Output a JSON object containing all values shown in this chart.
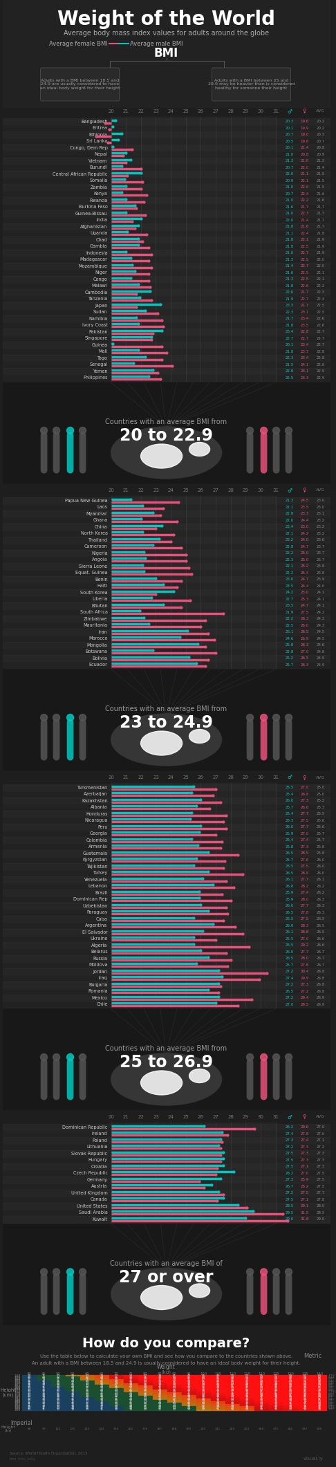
{
  "title": "Weight of the World",
  "subtitle": "Average body mass index values for adults around the globe",
  "legend_female": "Average female BMI",
  "legend_male": "Average male BMI",
  "female_color": "#e8517a",
  "male_color": "#00c8c0",
  "bg_color": "#1e1e1e",
  "grid_color": "#303030",
  "text_color": "#ffffff",
  "dim_color": "#888888",
  "groups": [
    {
      "range_label": "20 to 22.9",
      "range_text": "Countries with an average BMI from",
      "countries": [
        {
          "name": "Bangladesh",
          "male": 20.3,
          "female": 19.6,
          "avg": 20.2
        },
        {
          "name": "Eritrea",
          "male": 20.1,
          "female": 19.9,
          "avg": 20.2
        },
        {
          "name": "Ethiopia",
          "male": 20.7,
          "female": 19.0,
          "avg": 20.3
        },
        {
          "name": "Sri Lanka",
          "male": 20.5,
          "female": 19.8,
          "avg": 20.7
        },
        {
          "name": "Congo, Dem Rep",
          "male": 20.1,
          "female": 21.4,
          "avg": 20.8
        },
        {
          "name": "Nepal",
          "male": 21.0,
          "female": 20.8,
          "avg": 20.9
        },
        {
          "name": "Vietnam",
          "male": 21.3,
          "female": 21.0,
          "avg": 21.2
        },
        {
          "name": "Burundi",
          "male": 20.7,
          "female": 22.0,
          "avg": 21.4
        },
        {
          "name": "Central African Republic",
          "male": 22.0,
          "female": 21.1,
          "avg": 21.5
        },
        {
          "name": "Somalia",
          "male": 20.9,
          "female": 22.1,
          "avg": 21.5
        },
        {
          "name": "Zambia",
          "male": 21.0,
          "female": 22.0,
          "avg": 21.5
        },
        {
          "name": "Kenya",
          "male": 20.7,
          "female": 22.4,
          "avg": 21.6
        },
        {
          "name": "Rwanda",
          "male": 21.0,
          "female": 22.2,
          "avg": 21.6
        },
        {
          "name": "Burkina Faso",
          "male": 21.6,
          "female": 21.7,
          "avg": 21.7
        },
        {
          "name": "Guinea-Bissau",
          "male": 21.0,
          "female": 22.3,
          "avg": 21.7
        },
        {
          "name": "India",
          "male": 22.0,
          "female": 21.4,
          "avg": 21.7
        },
        {
          "name": "Afghanistan",
          "male": 21.8,
          "female": 21.6,
          "avg": 21.7
        },
        {
          "name": "Uganda",
          "male": 21.1,
          "female": 22.4,
          "avg": 21.8
        },
        {
          "name": "Chad",
          "male": 21.8,
          "female": 22.1,
          "avg": 21.9
        },
        {
          "name": "Gambia",
          "male": 21.8,
          "female": 22.5,
          "avg": 21.9
        },
        {
          "name": "Indonesia",
          "male": 21.0,
          "female": 22.7,
          "avg": 21.9
        },
        {
          "name": "Madagascar",
          "male": 21.3,
          "female": 22.5,
          "avg": 22.0
        },
        {
          "name": "Mozambique",
          "male": 21.4,
          "female": 22.7,
          "avg": 22.0
        },
        {
          "name": "Niger",
          "male": 21.6,
          "female": 22.5,
          "avg": 22.1
        },
        {
          "name": "Congo",
          "male": 21.3,
          "female": 22.5,
          "avg": 22.1
        },
        {
          "name": "Malawi",
          "male": 21.8,
          "female": 22.6,
          "avg": 22.2
        },
        {
          "name": "Cambodia",
          "male": 22.6,
          "female": 21.7,
          "avg": 22.3
        },
        {
          "name": "Tanzania",
          "male": 21.9,
          "female": 22.7,
          "avg": 22.4
        },
        {
          "name": "Japan",
          "male": 23.3,
          "female": 21.7,
          "avg": 22.5
        },
        {
          "name": "Sudan",
          "male": 22.3,
          "female": 23.1,
          "avg": 22.5
        },
        {
          "name": "Namibia",
          "male": 21.7,
          "female": 23.4,
          "avg": 22.6
        },
        {
          "name": "Ivory Coast",
          "male": 21.8,
          "female": 23.5,
          "avg": 22.6
        },
        {
          "name": "Pakistan",
          "male": 23.4,
          "female": 22.8,
          "avg": 22.7
        },
        {
          "name": "Singapore",
          "male": 22.7,
          "female": 22.7,
          "avg": 22.7
        },
        {
          "name": "Guinea",
          "male": 20.1,
          "female": 23.4,
          "avg": 22.7
        },
        {
          "name": "Mali",
          "male": 21.8,
          "female": 23.7,
          "avg": 22.8
        },
        {
          "name": "Togo",
          "male": 22.3,
          "female": 23.4,
          "avg": 22.8
        },
        {
          "name": "Senegal",
          "male": 21.5,
          "female": 24.1,
          "avg": 22.8
        },
        {
          "name": "Yemen",
          "male": 22.8,
          "female": 23.1,
          "avg": 22.9
        },
        {
          "name": "Philippines",
          "male": 22.5,
          "female": 23.3,
          "avg": 22.9
        }
      ]
    },
    {
      "range_label": "23 to 24.9",
      "range_text": "Countries with an average BMI from",
      "countries": [
        {
          "name": "Papua New Guinea",
          "male": 21.3,
          "female": 24.5,
          "avg": 23.0
        },
        {
          "name": "Laos",
          "male": 22.1,
          "female": 23.5,
          "avg": 23.0
        },
        {
          "name": "Myanmar",
          "male": 22.8,
          "female": 23.3,
          "avg": 23.1
        },
        {
          "name": "Ghana",
          "male": 22.0,
          "female": 24.4,
          "avg": 23.2
        },
        {
          "name": "China",
          "male": 23.4,
          "female": 23.0,
          "avg": 23.2
        },
        {
          "name": "North Korea",
          "male": 22.1,
          "female": 24.2,
          "avg": 23.2
        },
        {
          "name": "Thailand",
          "male": 23.2,
          "female": 24.0,
          "avg": 23.6
        },
        {
          "name": "Cameroon",
          "male": 22.8,
          "female": 24.7,
          "avg": 23.7
        },
        {
          "name": "Nigeria",
          "male": 22.2,
          "female": 25.0,
          "avg": 23.7
        },
        {
          "name": "Angola",
          "male": 22.3,
          "female": 25.0,
          "avg": 23.7
        },
        {
          "name": "Sierra Leone",
          "male": 22.1,
          "female": 25.2,
          "avg": 23.8
        },
        {
          "name": "Equat. Guinea",
          "male": 22.2,
          "female": 25.4,
          "avg": 23.8
        },
        {
          "name": "Benin",
          "male": 23.0,
          "female": 24.7,
          "avg": 23.9
        },
        {
          "name": "Haiti",
          "male": 23.5,
          "female": 24.4,
          "avg": 24.0
        },
        {
          "name": "South Korea",
          "male": 24.2,
          "female": 23.0,
          "avg": 24.1
        },
        {
          "name": "Liberia",
          "male": 22.7,
          "female": 25.3,
          "avg": 24.1
        },
        {
          "name": "Bhutan",
          "male": 23.5,
          "female": 24.7,
          "avg": 24.1
        },
        {
          "name": "South Africa",
          "male": 21.9,
          "female": 27.5,
          "avg": 24.2
        },
        {
          "name": "Zimbabwe",
          "male": 22.2,
          "female": 26.3,
          "avg": 24.3
        },
        {
          "name": "Mauritania",
          "male": 22.5,
          "female": 26.0,
          "avg": 24.3
        },
        {
          "name": "Iran",
          "male": 25.1,
          "female": 26.5,
          "avg": 24.5
        },
        {
          "name": "Morocco",
          "male": 24.6,
          "female": 26.9,
          "avg": 24.5
        },
        {
          "name": "Mongolia",
          "male": 25.8,
          "female": 26.3,
          "avg": 24.6
        },
        {
          "name": "Botswana",
          "male": 22.8,
          "female": 27.0,
          "avg": 24.8
        },
        {
          "name": "Bolivia",
          "male": 25.2,
          "female": 26.5,
          "avg": 24.9
        },
        {
          "name": "Ecuador",
          "male": 25.7,
          "female": 26.3,
          "avg": 24.9
        }
      ]
    },
    {
      "range_label": "25 to 26.9",
      "range_text": "Countries with an average BMI from",
      "countries": [
        {
          "name": "Turkmenistan",
          "male": 25.5,
          "female": 27.0,
          "avg": 25.0
        },
        {
          "name": "Azerbaijan",
          "male": 25.4,
          "female": 26.8,
          "avg": 25.0
        },
        {
          "name": "Kazakhstan",
          "male": 26.0,
          "female": 27.3,
          "avg": 25.2
        },
        {
          "name": "Albania",
          "male": 25.7,
          "female": 26.6,
          "avg": 25.3
        },
        {
          "name": "Honduras",
          "male": 25.4,
          "female": 27.7,
          "avg": 25.5
        },
        {
          "name": "Nicaragua",
          "male": 25.3,
          "female": 27.5,
          "avg": 25.6
        },
        {
          "name": "Peru",
          "male": 26.0,
          "female": 27.7,
          "avg": 25.6
        },
        {
          "name": "Georgia",
          "male": 25.9,
          "female": 27.0,
          "avg": 25.7
        },
        {
          "name": "Colombia",
          "male": 25.4,
          "female": 27.4,
          "avg": 25.7
        },
        {
          "name": "Armenia",
          "male": 25.8,
          "female": 27.3,
          "avg": 25.8
        },
        {
          "name": "Guatemala",
          "male": 26.5,
          "female": 28.5,
          "avg": 25.8
        },
        {
          "name": "Kyrgyzstan",
          "male": 25.7,
          "female": 27.6,
          "avg": 26.0
        },
        {
          "name": "Tajikistan",
          "male": 25.5,
          "female": 27.5,
          "avg": 26.0
        },
        {
          "name": "Turkey",
          "male": 26.5,
          "female": 28.8,
          "avg": 26.0
        },
        {
          "name": "Venezuela",
          "male": 26.1,
          "female": 27.7,
          "avg": 26.1
        },
        {
          "name": "Lebanon",
          "male": 26.8,
          "female": 28.2,
          "avg": 26.2
        },
        {
          "name": "Brazil",
          "male": 25.9,
          "female": 27.4,
          "avg": 26.2
        },
        {
          "name": "Dominican Rep",
          "male": 25.9,
          "female": 28.0,
          "avg": 26.3
        },
        {
          "name": "Uzbekistan",
          "male": 26.0,
          "female": 27.7,
          "avg": 26.3
        },
        {
          "name": "Paraguay",
          "male": 26.5,
          "female": 27.8,
          "avg": 26.3
        },
        {
          "name": "Cuba",
          "male": 25.5,
          "female": 27.5,
          "avg": 26.5
        },
        {
          "name": "Argentina",
          "male": 26.8,
          "female": 28.3,
          "avg": 26.5
        },
        {
          "name": "El Salvador",
          "male": 26.1,
          "female": 28.8,
          "avg": 26.5
        },
        {
          "name": "Ukraine",
          "male": 25.5,
          "female": 27.0,
          "avg": 26.6
        },
        {
          "name": "Algeria",
          "male": 25.5,
          "female": 29.2,
          "avg": 26.6
        },
        {
          "name": "Belarus",
          "male": 26.0,
          "female": 27.7,
          "avg": 26.7
        },
        {
          "name": "Russia",
          "male": 26.5,
          "female": 28.0,
          "avg": 26.7
        },
        {
          "name": "Moldova",
          "male": 25.7,
          "female": 27.8,
          "avg": 26.7
        },
        {
          "name": "Jordan",
          "male": 27.2,
          "female": 30.4,
          "avg": 26.8
        },
        {
          "name": "Iraq",
          "male": 27.4,
          "female": 29.9,
          "avg": 26.8
        },
        {
          "name": "Bulgaria",
          "male": 27.2,
          "female": 27.3,
          "avg": 26.8
        },
        {
          "name": "Romania",
          "male": 26.5,
          "female": 27.2,
          "avg": 26.8
        },
        {
          "name": "Mexico",
          "male": 27.2,
          "female": 29.4,
          "avg": 26.9
        },
        {
          "name": "Chile",
          "male": 27.0,
          "female": 28.5,
          "avg": 26.9
        }
      ]
    },
    {
      "range_label": "27 or over",
      "range_text": "Countries with an average BMI of",
      "countries": [
        {
          "name": "Dominican Republic",
          "male": 26.2,
          "female": 29.6,
          "avg": 27.0
        },
        {
          "name": "Ireland",
          "male": 27.4,
          "female": 27.8,
          "avg": 27.0
        },
        {
          "name": "Poland",
          "male": 27.3,
          "female": 27.4,
          "avg": 27.1
        },
        {
          "name": "Lithuania",
          "male": 27.2,
          "female": 27.3,
          "avg": 27.2
        },
        {
          "name": "Slovak Republic",
          "male": 27.5,
          "female": 27.3,
          "avg": 27.3
        },
        {
          "name": "Hungary",
          "male": 27.5,
          "female": 27.3,
          "avg": 27.3
        },
        {
          "name": "Croatia",
          "male": 27.5,
          "female": 27.1,
          "avg": 27.3
        },
        {
          "name": "Czech Republic",
          "male": 28.2,
          "female": 27.0,
          "avg": 27.5
        },
        {
          "name": "Germany",
          "male": 27.3,
          "female": 25.9,
          "avg": 27.5
        },
        {
          "name": "Austria",
          "male": 26.7,
          "female": 26.2,
          "avg": 27.5
        },
        {
          "name": "United Kingdom",
          "male": 27.2,
          "female": 27.5,
          "avg": 27.7
        },
        {
          "name": "Canada",
          "male": 27.5,
          "female": 27.1,
          "avg": 27.8
        },
        {
          "name": "United States",
          "male": 28.5,
          "female": 29.1,
          "avg": 28.0
        },
        {
          "name": "Saudi Arabia",
          "male": 29.5,
          "female": 31.5,
          "avg": 28.5
        },
        {
          "name": "Kuwait",
          "male": 29.0,
          "female": 31.8,
          "avg": 29.0
        }
      ]
    }
  ],
  "bmi_table": {
    "weights": [
      40,
      45,
      50,
      55,
      60,
      65,
      70,
      75,
      80,
      85,
      90,
      95,
      100,
      105,
      110,
      115,
      120,
      125,
      130,
      135,
      140
    ],
    "heights": [
      148,
      150,
      152,
      154,
      156,
      158,
      160,
      162,
      164,
      166,
      168,
      170,
      172,
      174,
      176,
      178,
      180,
      182,
      184,
      186,
      188,
      190,
      192,
      194,
      196,
      198,
      200
    ],
    "weight_label_imp": [
      88,
      99,
      110,
      121,
      132,
      143,
      154,
      165,
      176,
      187,
      198,
      209,
      220,
      231,
      242,
      253,
      264,
      275,
      286,
      297,
      308
    ],
    "height_label_imp": [
      "4'10\"",
      "4'11\"",
      "5'0\"",
      "5'1\"",
      "5'2\"",
      "5'3\"",
      "5'4\"",
      "5'5\"",
      "5'6\"",
      "5'7\"",
      "5'8\"",
      "5'9\"",
      "5'10\"",
      "5'11\"",
      "6'0\"",
      "6'1\"",
      "6'2\"",
      "6'3\"",
      "6'4\"",
      "6'5\"",
      "6'6\"",
      "6'7\"",
      "6'8\"",
      "6'9\"",
      "6'10\"",
      "6'11\"",
      "7'0\""
    ]
  }
}
